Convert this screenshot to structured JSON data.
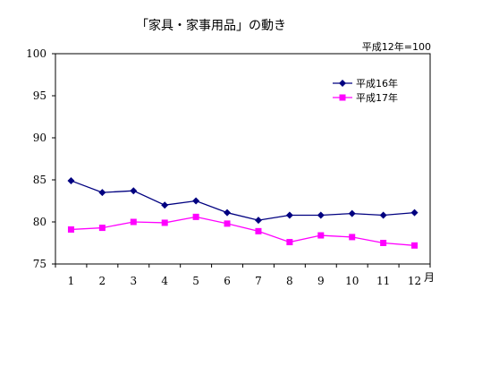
{
  "chart_data": {
    "type": "line",
    "title": "「家具・家事用品」の動き",
    "base_note": "平成12年=100",
    "categories": [
      "1",
      "2",
      "3",
      "4",
      "5",
      "6",
      "7",
      "8",
      "9",
      "10",
      "11",
      "12"
    ],
    "x_unit": "月",
    "ylim": [
      75,
      100
    ],
    "yticks": [
      75,
      80,
      85,
      90,
      95,
      100
    ],
    "grid": false,
    "legend_position": "top-right",
    "series": [
      {
        "name": "平成16年",
        "color": "#000080",
        "marker": "diamond",
        "values": [
          84.9,
          83.5,
          83.7,
          82.0,
          82.5,
          81.1,
          80.2,
          80.8,
          80.8,
          81.0,
          80.8,
          81.1
        ]
      },
      {
        "name": "平成17年",
        "color": "#ff00ff",
        "marker": "square",
        "values": [
          79.1,
          79.3,
          80.0,
          79.9,
          80.6,
          79.8,
          78.9,
          77.6,
          78.4,
          78.2,
          77.5,
          77.2
        ]
      }
    ]
  }
}
